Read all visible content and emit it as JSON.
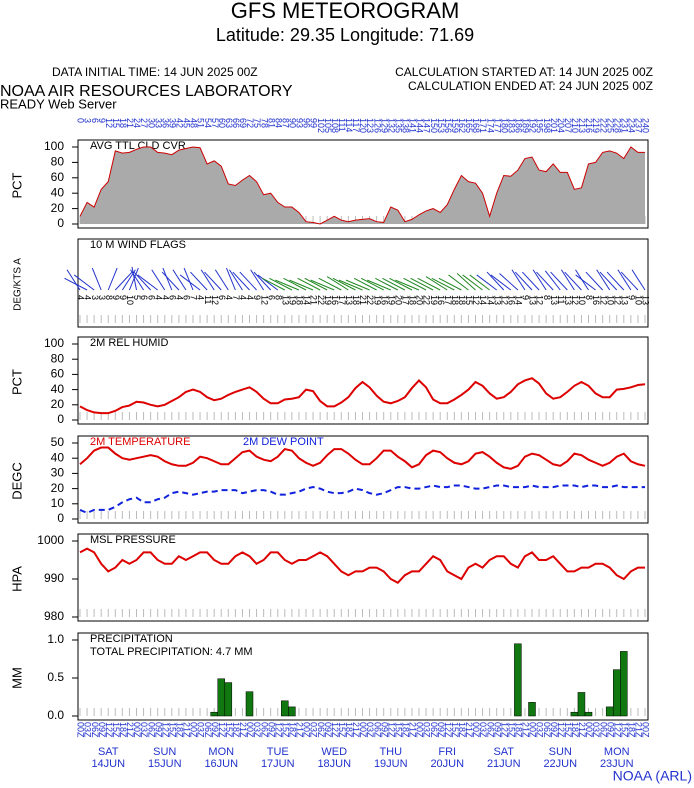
{
  "header": {
    "title": "GFS METEOROGRAM",
    "subtitle": "Latitude: 29.35 Longitude:  71.69",
    "initial_time": "DATA INITIAL TIME: 14 JUN 2025 00Z",
    "calc_started": "CALCULATION STARTED AT: 14 JUN 2025 00Z",
    "calc_ended": "CALCULATION ENDED AT: 24 JUN 2025 00Z",
    "lab": "NOAA AIR RESOURCES LABORATORY",
    "server": "READY Web Server",
    "footer": "NOAA (ARL)"
  },
  "time_axis": {
    "top_labels": [
      0,
      3,
      6,
      9,
      12,
      15,
      18,
      21,
      24,
      27,
      30,
      33,
      36,
      39,
      42,
      45,
      48,
      51,
      54,
      57,
      60,
      63,
      66,
      69,
      72,
      75,
      78,
      81,
      84,
      87,
      90,
      93,
      96,
      99,
      102,
      105,
      108,
      111,
      114,
      117,
      120,
      123,
      126,
      129,
      132,
      135,
      138,
      141,
      144,
      147,
      150,
      153,
      156,
      159,
      162,
      165,
      168,
      171,
      174,
      177,
      180,
      183,
      186,
      189,
      192,
      195,
      198,
      201,
      204,
      207,
      210,
      213,
      216,
      219,
      222,
      225,
      228,
      231,
      234,
      237,
      240
    ],
    "bottom_labels": [
      "00Z",
      "03Z",
      "06Z",
      "09Z",
      "12Z",
      "15Z",
      "18Z",
      "21Z",
      "00Z",
      "03Z",
      "06Z",
      "09Z",
      "12Z",
      "15Z",
      "18Z",
      "21Z",
      "00Z",
      "03Z",
      "06Z",
      "09Z",
      "12Z",
      "15Z",
      "18Z",
      "21Z",
      "00Z",
      "03Z",
      "06Z",
      "09Z",
      "12Z",
      "15Z",
      "18Z",
      "21Z",
      "00Z",
      "03Z",
      "06Z",
      "09Z",
      "12Z",
      "15Z",
      "18Z",
      "21Z",
      "00Z",
      "03Z",
      "06Z",
      "09Z",
      "12Z",
      "15Z",
      "18Z",
      "21Z",
      "00Z",
      "03Z",
      "06Z",
      "09Z",
      "12Z",
      "15Z",
      "18Z",
      "21Z",
      "00Z",
      "03Z",
      "06Z",
      "09Z",
      "12Z",
      "15Z",
      "18Z",
      "21Z",
      "00Z",
      "03Z",
      "06Z",
      "09Z",
      "12Z",
      "15Z",
      "18Z",
      "21Z",
      "00Z",
      "03Z",
      "06Z",
      "09Z",
      "12Z",
      "15Z",
      "18Z",
      "21Z",
      "00Z"
    ],
    "days": [
      {
        "dow": "SAT",
        "date": "14JUN"
      },
      {
        "dow": "SUN",
        "date": "15JUN"
      },
      {
        "dow": "MON",
        "date": "16JUN"
      },
      {
        "dow": "TUE",
        "date": "17JUN"
      },
      {
        "dow": "WED",
        "date": "18JUN"
      },
      {
        "dow": "THU",
        "date": "19JUN"
      },
      {
        "dow": "FRI",
        "date": "20JUN"
      },
      {
        "dow": "SAT",
        "date": "21JUN"
      },
      {
        "dow": "SUN",
        "date": "22JUN"
      },
      {
        "dow": "MON",
        "date": "23JUN"
      }
    ]
  },
  "chart_data": [
    {
      "type": "area",
      "title": "AVG TTL CLD CVR",
      "ylabel": "PCT",
      "ylim": [
        0,
        100
      ],
      "yticks": [
        0,
        20,
        40,
        60,
        80,
        100
      ],
      "color": "#aaaaaa",
      "line_color": "#cc0000",
      "values": [
        10,
        28,
        22,
        45,
        55,
        95,
        92,
        93,
        97,
        100,
        100,
        93,
        92,
        90,
        96,
        98,
        100,
        99,
        78,
        82,
        75,
        52,
        50,
        57,
        63,
        55,
        38,
        40,
        28,
        22,
        22,
        15,
        3,
        2,
        0,
        5,
        10,
        5,
        3,
        5,
        6,
        7,
        3,
        2,
        22,
        18,
        3,
        6,
        12,
        17,
        20,
        15,
        25,
        45,
        63,
        55,
        53,
        40,
        10,
        40,
        63,
        62,
        70,
        85,
        87,
        70,
        68,
        78,
        67,
        67,
        45,
        47,
        78,
        80,
        93,
        95,
        92,
        85,
        100,
        93,
        93
      ]
    },
    {
      "type": "wind",
      "title": "10 M  WIND FLAGS",
      "ylabel": "DEG/KTS A",
      "speeds": [
        4,
        4,
        3,
        3,
        8,
        9,
        9,
        10,
        5,
        6,
        6,
        4,
        4,
        6,
        4,
        6,
        7,
        4,
        11,
        12,
        6,
        4,
        7,
        4,
        4,
        9,
        12,
        6,
        8,
        13,
        19,
        18,
        14,
        21,
        22,
        19,
        16,
        17,
        13,
        18,
        21,
        22,
        19,
        16,
        19,
        20,
        17,
        18,
        20,
        22,
        19,
        16,
        17,
        18,
        18,
        15,
        12,
        14,
        14,
        13,
        12,
        16,
        14,
        9,
        13,
        12,
        8,
        13,
        11,
        13,
        12,
        10,
        8,
        16,
        12,
        10,
        12,
        13,
        9,
        10,
        13
      ],
      "directions": [
        330,
        300,
        310,
        340,
        20,
        40,
        30,
        20,
        350,
        330,
        320,
        310,
        330,
        340,
        320,
        330,
        340,
        310,
        320,
        330,
        320,
        330,
        340,
        330,
        320,
        320,
        330,
        320,
        310,
        300,
        300,
        295,
        300,
        295,
        300,
        300,
        295,
        300,
        305,
        300,
        295,
        295,
        300,
        300,
        295,
        300,
        300,
        300,
        295,
        300,
        300,
        300,
        305,
        300,
        300,
        310,
        315,
        310,
        310,
        310,
        320,
        310,
        315,
        330,
        320,
        320,
        330,
        320,
        325,
        320,
        330,
        320,
        330,
        310,
        320,
        330,
        320,
        320,
        330,
        320,
        330
      ],
      "colors": [
        "#2233cc",
        "#2233cc",
        "#2233cc",
        "#2233cc",
        "#2233cc",
        "#2233cc",
        "#2233cc",
        "#2233cc",
        "#2233cc",
        "#2233cc",
        "#2233cc",
        "#2233cc",
        "#2233cc",
        "#2233cc",
        "#2233cc",
        "#2233cc",
        "#2233cc",
        "#2233cc",
        "#2233cc",
        "#2233cc",
        "#2233cc",
        "#2233cc",
        "#2233cc",
        "#2233cc",
        "#2233cc",
        "#2233cc",
        "#2233cc",
        "#2233cc",
        "#2233cc",
        "#228822",
        "#228822",
        "#228822",
        "#228822",
        "#228822",
        "#228822",
        "#228822",
        "#228822",
        "#228822",
        "#228822",
        "#228822",
        "#228822",
        "#228822",
        "#228822",
        "#228822",
        "#228822",
        "#228822",
        "#228822",
        "#228822",
        "#228822",
        "#228822",
        "#228822",
        "#228822",
        "#228822",
        "#228822",
        "#228822",
        "#228822",
        "#228822",
        "#228822",
        "#228822",
        "#2233cc",
        "#2233cc",
        "#2233cc",
        "#2233cc",
        "#2233cc",
        "#2233cc",
        "#2233cc",
        "#2233cc",
        "#2233cc",
        "#2233cc",
        "#2233cc",
        "#2233cc",
        "#2233cc",
        "#2233cc",
        "#2233cc",
        "#2233cc",
        "#2233cc",
        "#2233cc",
        "#2233cc",
        "#2233cc",
        "#2233cc",
        "#2233cc"
      ]
    },
    {
      "type": "line",
      "title": "2M REL HUMID",
      "ylabel": "PCT",
      "ylim": [
        0,
        100
      ],
      "yticks": [
        0,
        20,
        40,
        60,
        80,
        100
      ],
      "series": [
        {
          "color": "#dd0000",
          "values": [
            18,
            13,
            10,
            9,
            9,
            12,
            17,
            19,
            24,
            23,
            20,
            18,
            20,
            25,
            30,
            37,
            40,
            37,
            30,
            26,
            28,
            33,
            37,
            40,
            43,
            37,
            28,
            22,
            22,
            27,
            28,
            30,
            40,
            38,
            25,
            18,
            18,
            23,
            30,
            42,
            50,
            43,
            32,
            24,
            22,
            25,
            30,
            42,
            52,
            43,
            27,
            22,
            22,
            27,
            33,
            40,
            50,
            45,
            35,
            28,
            30,
            37,
            47,
            52,
            55,
            48,
            35,
            28,
            30,
            37,
            45,
            50,
            45,
            35,
            30,
            30,
            40,
            41,
            43,
            46,
            47
          ]
        }
      ]
    },
    {
      "type": "line",
      "ylabel": "DEGC",
      "ylim": [
        0,
        50
      ],
      "yticks": [
        0,
        10,
        20,
        30,
        40,
        50
      ],
      "series": [
        {
          "name": "2M TEMPERATURE",
          "color": "#dd0000",
          "values": [
            36,
            40,
            45,
            47,
            47,
            43,
            40,
            39,
            40,
            41,
            42,
            41,
            38,
            36,
            35,
            35,
            37,
            41,
            40,
            38,
            36,
            36,
            40,
            44,
            45,
            41,
            39,
            38,
            41,
            46,
            45,
            40,
            37,
            35,
            37,
            42,
            46,
            46,
            43,
            39,
            36,
            36,
            40,
            45,
            45,
            41,
            38,
            34,
            36,
            42,
            45,
            44,
            40,
            37,
            36,
            38,
            43,
            44,
            41,
            37,
            34,
            33,
            35,
            41,
            43,
            42,
            39,
            36,
            35,
            38,
            43,
            42,
            39,
            37,
            35,
            37,
            41,
            43,
            38,
            36,
            35
          ]
        },
        {
          "name": "2M   DEW POINT",
          "color": "#1122dd",
          "dashed": true,
          "values": [
            6,
            4,
            6,
            6,
            6,
            8,
            11,
            13,
            14,
            11,
            11,
            13,
            14,
            17,
            18,
            17,
            16,
            17,
            18,
            18,
            19,
            19,
            19,
            17,
            18,
            19,
            19,
            18,
            16,
            16,
            17,
            18,
            20,
            21,
            20,
            18,
            17,
            17,
            18,
            20,
            19,
            17,
            16,
            17,
            19,
            21,
            21,
            20,
            20,
            21,
            22,
            21,
            21,
            22,
            22,
            21,
            20,
            20,
            21,
            22,
            22,
            21,
            21,
            21,
            22,
            21,
            21,
            21,
            22,
            22,
            22,
            21,
            22,
            22,
            21,
            21,
            22,
            21,
            21,
            21,
            21
          ]
        }
      ]
    },
    {
      "type": "line",
      "title": "MSL PRESSURE",
      "ylabel": "HPA",
      "ylim": [
        980,
        1000
      ],
      "yticks": [
        980,
        990,
        1000
      ],
      "series": [
        {
          "color": "#dd0000",
          "values": [
            997,
            998,
            997,
            994,
            992,
            993,
            995,
            994,
            995,
            997,
            997,
            995,
            994,
            994,
            996,
            995,
            996,
            997,
            997,
            995,
            994,
            994,
            996,
            997,
            996,
            994,
            995,
            997,
            997,
            995,
            994,
            995,
            995,
            996,
            997,
            996,
            994,
            992,
            991,
            992,
            992,
            993,
            993,
            992,
            990,
            989,
            991,
            992,
            992,
            994,
            996,
            995,
            992,
            991,
            990,
            993,
            994,
            993,
            995,
            996,
            996,
            994,
            993,
            996,
            997,
            995,
            995,
            996,
            994,
            992,
            992,
            993,
            993,
            994,
            994,
            993,
            991,
            990,
            992,
            993,
            993
          ]
        }
      ]
    },
    {
      "type": "bar",
      "title": "PRECIPITATION",
      "ylabel": "MM",
      "annotation": "TOTAL PRECIPITATION:   4.7 MM",
      "ylim": [
        0,
        1
      ],
      "yticks": [
        {
          "value": 0,
          "label": "0.0"
        },
        {
          "value": 0.5,
          "label": "0.5"
        },
        {
          "value": 1,
          "label": "1.0"
        }
      ],
      "color": "#117711",
      "values": [
        0,
        0,
        0,
        0,
        0,
        0,
        0,
        0,
        0,
        0,
        0,
        0,
        0,
        0,
        0,
        0,
        0,
        0,
        0,
        0.05,
        0.49,
        0.44,
        0,
        0,
        0.32,
        0,
        0,
        0,
        0,
        0.2,
        0.12,
        0,
        0,
        0,
        0,
        0,
        0,
        0,
        0,
        0,
        0,
        0,
        0,
        0,
        0,
        0,
        0,
        0,
        0,
        0,
        0,
        0,
        0,
        0,
        0,
        0,
        0,
        0,
        0,
        0,
        0,
        0,
        0.95,
        0,
        0.18,
        0,
        0,
        0,
        0,
        0,
        0.05,
        0.31,
        0.05,
        0,
        0,
        0.12,
        0.61,
        0.85,
        0,
        0,
        0
      ]
    }
  ]
}
